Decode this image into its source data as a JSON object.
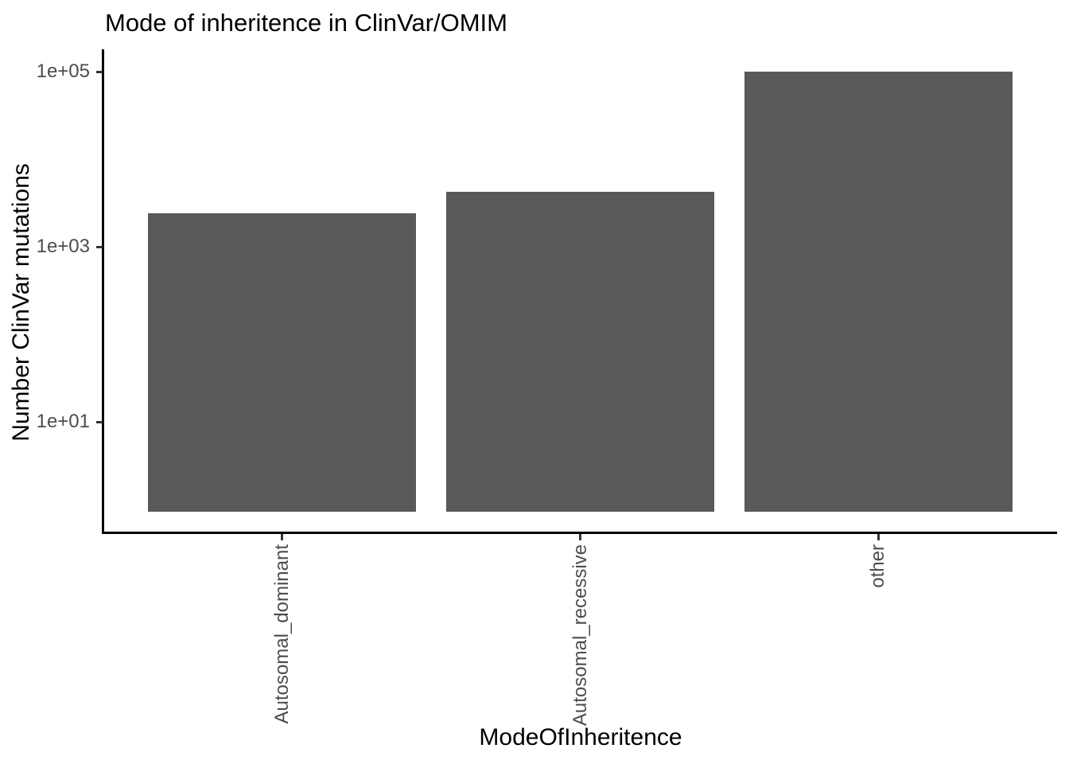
{
  "chart_data": {
    "type": "bar",
    "title": "Mode of inheritence in ClinVar/OMIM",
    "xlabel": "ModeOfInheritence",
    "ylabel": "Number ClinVar mutations",
    "categories": [
      "Autosomal_dominant",
      "Autosomal_recessive",
      "other"
    ],
    "values": [
      2400,
      4200,
      100000
    ],
    "y_scale": "log10",
    "ylim": [
      1,
      130000
    ],
    "y_ticks": [
      {
        "label": "1e+05",
        "value": 100000
      },
      {
        "label": "1e+03",
        "value": 1000
      },
      {
        "label": "1e+01",
        "value": 10
      }
    ],
    "grid": "off",
    "legend": "none",
    "bar_color": "#595959",
    "tick_label_color": "#4D4D4D",
    "axis_color": "#000000"
  }
}
